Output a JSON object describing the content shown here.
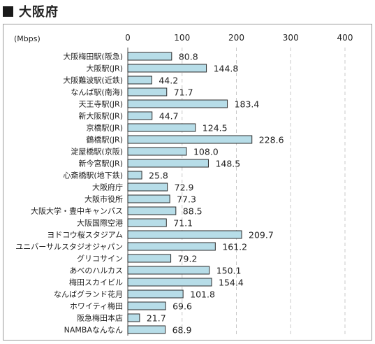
{
  "header": {
    "title": "大阪府"
  },
  "chart_data": {
    "type": "bar",
    "orientation": "horizontal",
    "unit_label": "(Mbps)",
    "xlim": [
      0,
      400
    ],
    "xticks": [
      0,
      100,
      200,
      300,
      400
    ],
    "grid": "dashed vertical",
    "bar_color": "#b7dde8",
    "bar_edge_color": "#2b2b2b",
    "categories": [
      "大阪梅田駅(阪急)",
      "大阪駅(JR)",
      "大阪難波駅(近鉄)",
      "なんば駅(南海)",
      "天王寺駅(JR)",
      "新大阪駅(JR)",
      "京橋駅(JR)",
      "鶴橋駅(JR)",
      "淀屋橋駅(京阪)",
      "新今宮駅(JR)",
      "心斎橋駅(地下鉄)",
      "大阪府庁",
      "大阪市役所",
      "大阪大学・豊中キャンパス",
      "大阪国際空港",
      "ヨドコウ桜スタジアム",
      "ユニバーサルスタジオジャパン",
      "グリコサイン",
      "あべのハルカス",
      "梅田スカイビル",
      "なんばグランド花月",
      "ホワイティ梅田",
      "阪急梅田本店",
      "NAMBAなんなん"
    ],
    "values": [
      80.8,
      144.8,
      44.2,
      71.7,
      183.4,
      44.7,
      124.5,
      228.6,
      108.0,
      148.5,
      25.8,
      72.9,
      77.3,
      88.5,
      71.1,
      209.7,
      161.2,
      79.2,
      150.1,
      154.4,
      101.8,
      69.6,
      21.7,
      68.9
    ],
    "value_labels": [
      "80.8",
      "144.8",
      "44.2",
      "71.7",
      "183.4",
      "44.7",
      "124.5",
      "228.6",
      "108.0",
      "148.5",
      "25.8",
      "72.9",
      "77.3",
      "88.5",
      "71.1",
      "209.7",
      "161.2",
      "79.2",
      "150.1",
      "154.4",
      "101.8",
      "69.6",
      "21.7",
      "68.9"
    ]
  }
}
